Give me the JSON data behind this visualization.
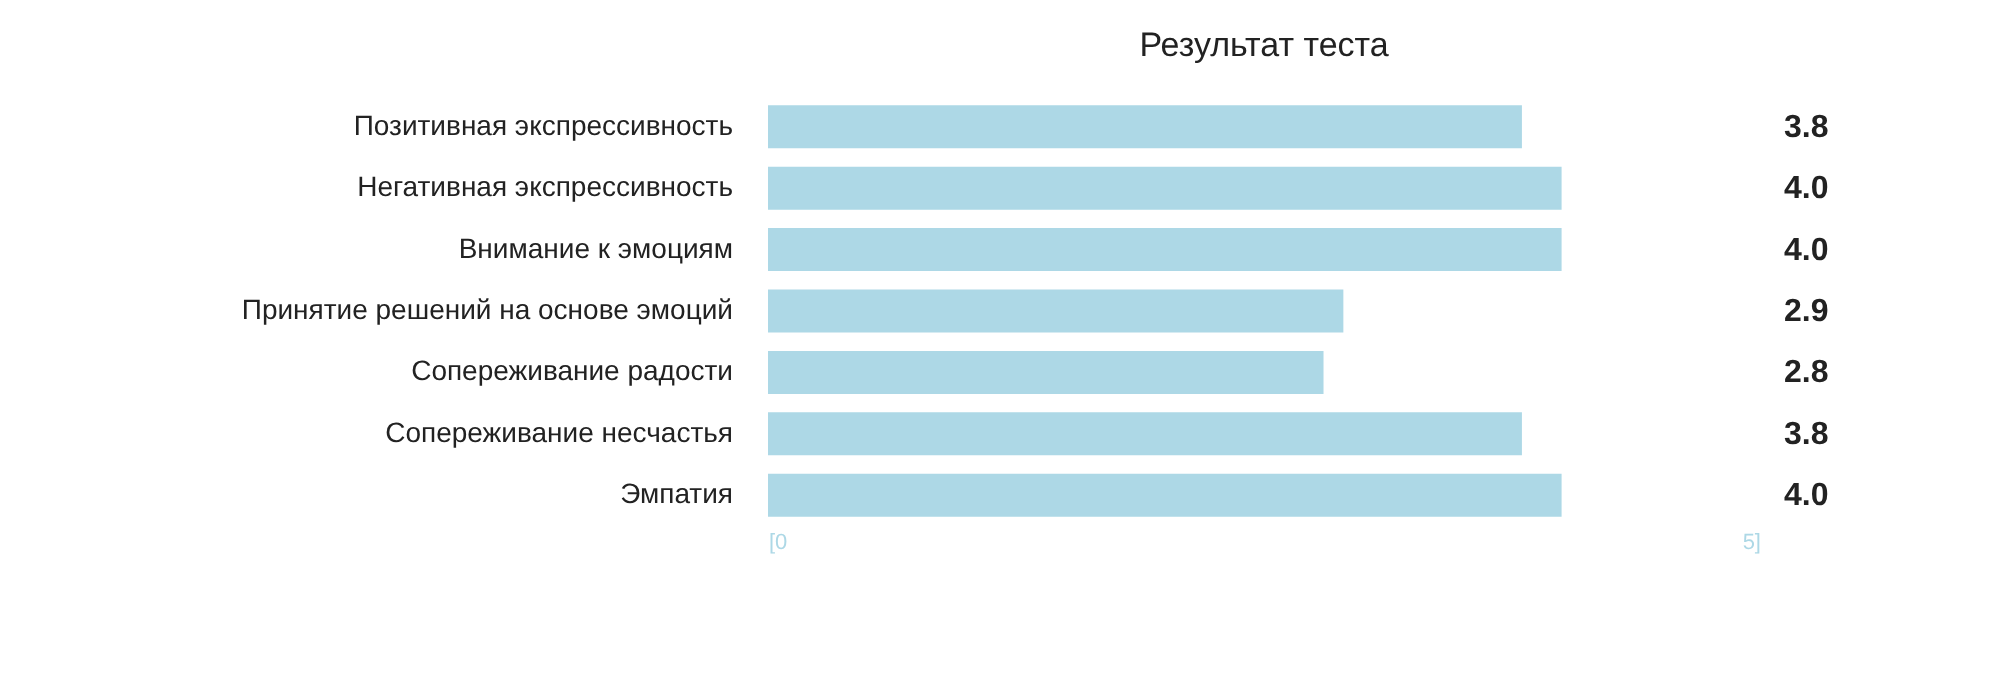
{
  "chart_data": {
    "type": "bar",
    "title": "Результат теста",
    "orientation": "horizontal",
    "categories": [
      "Позитивная экспрессивность",
      "Негативная экспрессивность",
      "Внимание к эмоциям",
      "Принятие решений на основе эмоций",
      "Сопереживание радости",
      "Сопереживание несчастья",
      "Эмпатия"
    ],
    "values": [
      3.8,
      4.0,
      4.0,
      2.9,
      2.8,
      3.8,
      4.0
    ],
    "value_labels": [
      "3.8",
      "4.0",
      "4.0",
      "2.9",
      "2.8",
      "3.8",
      "4.0"
    ],
    "color": "#add8e6",
    "xlim": [
      0,
      5
    ],
    "xticks": [
      {
        "value": 0,
        "label": "[0"
      },
      {
        "value": 5,
        "label": "5]"
      }
    ]
  }
}
